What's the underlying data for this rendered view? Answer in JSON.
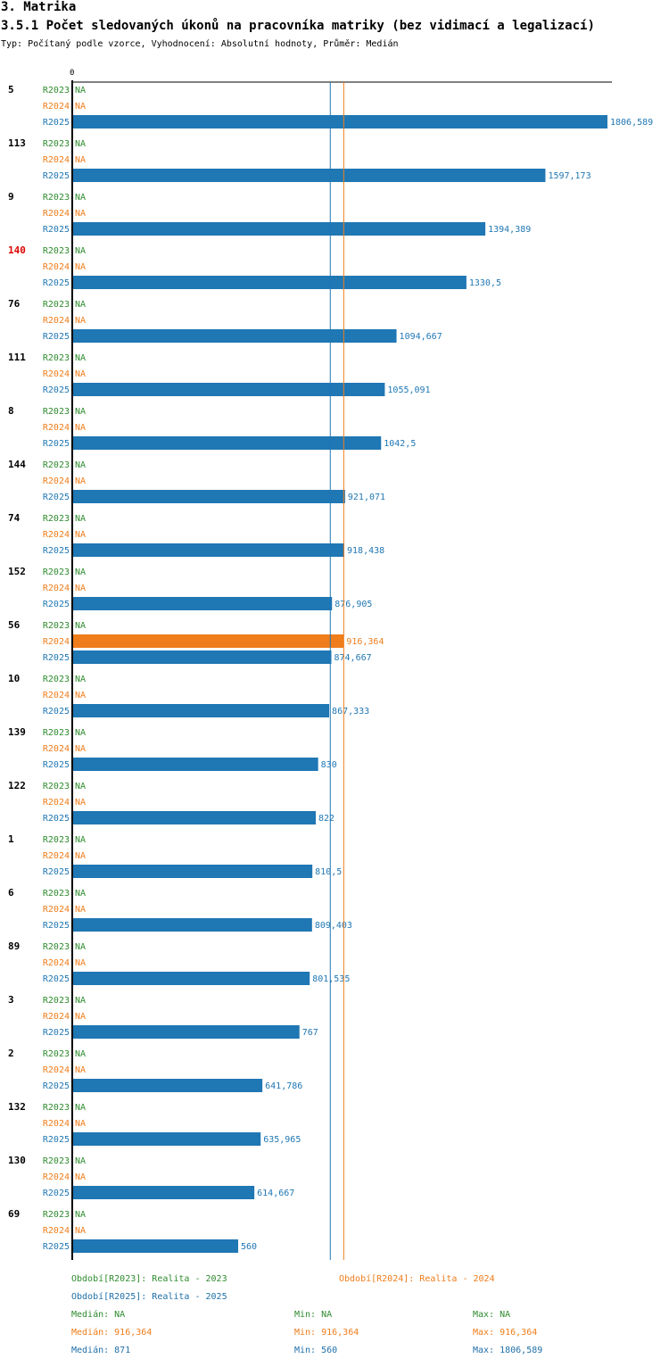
{
  "header": {
    "title": "3. Matrika",
    "subtitle": "3.5.1 Počet sledovaných úkonů na pracovníka matriky (bez vidimací a legalizací)",
    "type_line": "Typ: Počítaný podle vzorce, Vyhodnocení: Absolutní hodnoty, Průměr: Medián"
  },
  "colors": {
    "R2023": "#2e8b2e",
    "R2024": "#ef7d1b",
    "R2025": "#1f77b4",
    "highlight_id": "#dd0000"
  },
  "chart_data": {
    "type": "bar",
    "orientation": "horizontal",
    "axis_zero_label": "0",
    "xlim": [
      0,
      1806.589
    ],
    "series_names": [
      "R2023",
      "R2024",
      "R2025"
    ],
    "na_label": "NA",
    "highlighted_category": "140",
    "reference_lines": [
      {
        "name": "Medián R2025",
        "series": "R2025",
        "value": 871
      },
      {
        "name": "Medián R2024",
        "series": "R2024",
        "value": 916.364
      }
    ],
    "categories": [
      {
        "id": "5",
        "R2023": null,
        "R2024": null,
        "R2025": 1806.589,
        "R2023_label": "NA",
        "R2024_label": "NA",
        "R2025_label": "1806,589"
      },
      {
        "id": "113",
        "R2023": null,
        "R2024": null,
        "R2025": 1597.173,
        "R2023_label": "NA",
        "R2024_label": "NA",
        "R2025_label": "1597,173"
      },
      {
        "id": "9",
        "R2023": null,
        "R2024": null,
        "R2025": 1394.389,
        "R2023_label": "NA",
        "R2024_label": "NA",
        "R2025_label": "1394,389"
      },
      {
        "id": "140",
        "R2023": null,
        "R2024": null,
        "R2025": 1330.5,
        "R2023_label": "NA",
        "R2024_label": "NA",
        "R2025_label": "1330,5"
      },
      {
        "id": "76",
        "R2023": null,
        "R2024": null,
        "R2025": 1094.667,
        "R2023_label": "NA",
        "R2024_label": "NA",
        "R2025_label": "1094,667"
      },
      {
        "id": "111",
        "R2023": null,
        "R2024": null,
        "R2025": 1055.091,
        "R2023_label": "NA",
        "R2024_label": "NA",
        "R2025_label": "1055,091"
      },
      {
        "id": "8",
        "R2023": null,
        "R2024": null,
        "R2025": 1042.5,
        "R2023_label": "NA",
        "R2024_label": "NA",
        "R2025_label": "1042,5"
      },
      {
        "id": "144",
        "R2023": null,
        "R2024": null,
        "R2025": 921.071,
        "R2023_label": "NA",
        "R2024_label": "NA",
        "R2025_label": "921,071"
      },
      {
        "id": "74",
        "R2023": null,
        "R2024": null,
        "R2025": 918.438,
        "R2023_label": "NA",
        "R2024_label": "NA",
        "R2025_label": "918,438"
      },
      {
        "id": "152",
        "R2023": null,
        "R2024": null,
        "R2025": 876.905,
        "R2023_label": "NA",
        "R2024_label": "NA",
        "R2025_label": "876,905"
      },
      {
        "id": "56",
        "R2023": null,
        "R2024": 916.364,
        "R2025": 874.667,
        "R2023_label": "NA",
        "R2024_label": "916,364",
        "R2025_label": "874,667"
      },
      {
        "id": "10",
        "R2023": null,
        "R2024": null,
        "R2025": 867.333,
        "R2023_label": "NA",
        "R2024_label": "NA",
        "R2025_label": "867,333"
      },
      {
        "id": "139",
        "R2023": null,
        "R2024": null,
        "R2025": 830,
        "R2023_label": "NA",
        "R2024_label": "NA",
        "R2025_label": "830"
      },
      {
        "id": "122",
        "R2023": null,
        "R2024": null,
        "R2025": 822,
        "R2023_label": "NA",
        "R2024_label": "NA",
        "R2025_label": "822"
      },
      {
        "id": "1",
        "R2023": null,
        "R2024": null,
        "R2025": 810.5,
        "R2023_label": "NA",
        "R2024_label": "NA",
        "R2025_label": "810,5"
      },
      {
        "id": "6",
        "R2023": null,
        "R2024": null,
        "R2025": 809.403,
        "R2023_label": "NA",
        "R2024_label": "NA",
        "R2025_label": "809,403"
      },
      {
        "id": "89",
        "R2023": null,
        "R2024": null,
        "R2025": 801.535,
        "R2023_label": "NA",
        "R2024_label": "NA",
        "R2025_label": "801,535"
      },
      {
        "id": "3",
        "R2023": null,
        "R2024": null,
        "R2025": 767,
        "R2023_label": "NA",
        "R2024_label": "NA",
        "R2025_label": "767"
      },
      {
        "id": "2",
        "R2023": null,
        "R2024": null,
        "R2025": 641.786,
        "R2023_label": "NA",
        "R2024_label": "NA",
        "R2025_label": "641,786"
      },
      {
        "id": "132",
        "R2023": null,
        "R2024": null,
        "R2025": 635.965,
        "R2023_label": "NA",
        "R2024_label": "NA",
        "R2025_label": "635,965"
      },
      {
        "id": "130",
        "R2023": null,
        "R2024": null,
        "R2025": 614.667,
        "R2023_label": "NA",
        "R2024_label": "NA",
        "R2025_label": "614,667"
      },
      {
        "id": "69",
        "R2023": null,
        "R2024": null,
        "R2025": 560,
        "R2023_label": "NA",
        "R2024_label": "NA",
        "R2025_label": "560"
      }
    ]
  },
  "legend": {
    "period_2023": "Období[R2023]: Realita - 2023",
    "period_2024": "Období[R2024]: Realita - 2024",
    "period_2025": "Období[R2025]: Realita - 2025",
    "stats": {
      "R2023": {
        "median": "Medián: NA",
        "min": "Min: NA",
        "max": "Max: NA"
      },
      "R2024": {
        "median": "Medián: 916,364",
        "min": "Min: 916,364",
        "max": "Max: 916,364"
      },
      "R2025": {
        "median": "Medián: 871",
        "min": "Min: 560",
        "max": "Max: 1806,589"
      }
    }
  }
}
